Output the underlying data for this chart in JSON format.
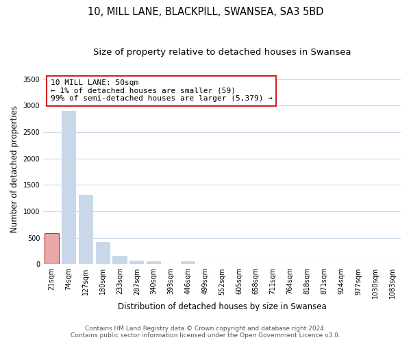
{
  "title": "10, MILL LANE, BLACKPILL, SWANSEA, SA3 5BD",
  "subtitle": "Size of property relative to detached houses in Swansea",
  "xlabel": "Distribution of detached houses by size in Swansea",
  "ylabel": "Number of detached properties",
  "categories": [
    "21sqm",
    "74sqm",
    "127sqm",
    "180sqm",
    "233sqm",
    "287sqm",
    "340sqm",
    "393sqm",
    "446sqm",
    "499sqm",
    "552sqm",
    "605sqm",
    "658sqm",
    "711sqm",
    "764sqm",
    "818sqm",
    "871sqm",
    "924sqm",
    "977sqm",
    "1030sqm",
    "1083sqm"
  ],
  "values": [
    580,
    2900,
    1310,
    420,
    160,
    70,
    50,
    0,
    50,
    0,
    0,
    0,
    0,
    0,
    0,
    0,
    0,
    0,
    0,
    0,
    0
  ],
  "bar_color": "#c8d8e8",
  "highlight_bar_index": 0,
  "highlight_color": "#e8a8a8",
  "highlight_edge_color": "#cc2222",
  "annotation_box_text": "10 MILL LANE: 50sqm\n← 1% of detached houses are smaller (59)\n99% of semi-detached houses are larger (5,379) →",
  "ylim": [
    0,
    3600
  ],
  "yticks": [
    0,
    500,
    1000,
    1500,
    2000,
    2500,
    3000,
    3500
  ],
  "footer_line1": "Contains HM Land Registry data © Crown copyright and database right 2024.",
  "footer_line2": "Contains public sector information licensed under the Open Government Licence v3.0.",
  "background_color": "#ffffff",
  "grid_color": "#c8d8e8",
  "title_fontsize": 10.5,
  "subtitle_fontsize": 9.5,
  "axis_label_fontsize": 8.5,
  "tick_fontsize": 7,
  "footer_fontsize": 6.5,
  "annotation_fontsize": 8
}
